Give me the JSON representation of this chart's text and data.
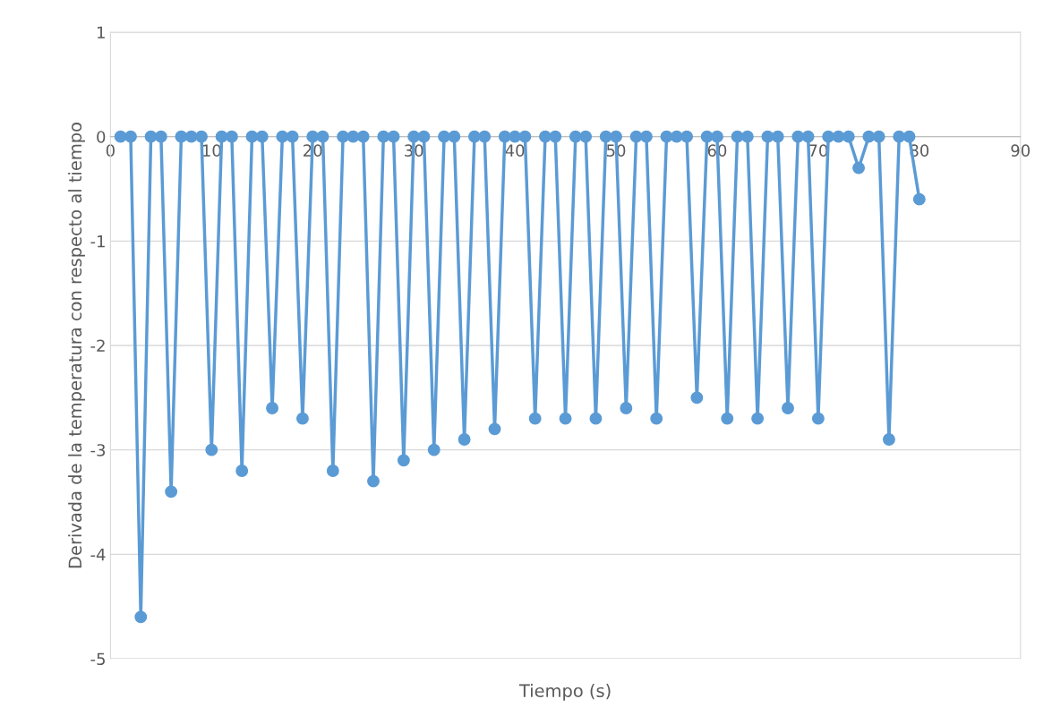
{
  "chart_data": {
    "type": "line",
    "xlabel": "Tiempo (s)",
    "ylabel": "Derivada de la temperatura con respecto al tiempo",
    "x": [
      1,
      2,
      3,
      4,
      5,
      6,
      7,
      8,
      9,
      10,
      11,
      12,
      13,
      14,
      15,
      16,
      17,
      18,
      19,
      20,
      21,
      22,
      23,
      24,
      25,
      26,
      27,
      28,
      29,
      30,
      31,
      32,
      33,
      34,
      35,
      36,
      37,
      38,
      39,
      40,
      41,
      42,
      43,
      44,
      45,
      46,
      47,
      48,
      49,
      50,
      51,
      52,
      53,
      54,
      55,
      56,
      57,
      58,
      59,
      60,
      61,
      62,
      63,
      64,
      65,
      66,
      67,
      68,
      69,
      70,
      71,
      72,
      73,
      74,
      75,
      76,
      77,
      78,
      79,
      80
    ],
    "series": [
      {
        "color": "#5b9bd5",
        "values": [
          0,
          0,
          -4.6,
          0,
          0,
          -3.4,
          0,
          0,
          0,
          -3.0,
          0,
          0,
          -3.2,
          0,
          0,
          -2.6,
          0,
          0,
          -2.7,
          0,
          0,
          -3.2,
          0,
          0,
          0,
          -3.3,
          0,
          0,
          -3.1,
          0,
          0,
          -3.0,
          0,
          0,
          -2.9,
          0,
          0,
          -2.8,
          0,
          0,
          0,
          -2.7,
          0,
          0,
          -2.7,
          0,
          0,
          -2.7,
          0,
          0,
          -2.6,
          0,
          0,
          -2.7,
          0,
          0,
          0,
          -2.5,
          0,
          0,
          -2.7,
          0,
          0,
          -2.7,
          0,
          0,
          -2.6,
          0,
          0,
          -2.7,
          0,
          0,
          0,
          -0.3,
          0,
          0,
          -2.9,
          0,
          0,
          -0.6
        ]
      }
    ],
    "xlim": [
      0,
      90
    ],
    "xticks": [
      0,
      10,
      20,
      30,
      40,
      50,
      60,
      70,
      80,
      90
    ],
    "ylim": [
      -5,
      1
    ],
    "yticks": [
      -5,
      -4,
      -3,
      -2,
      -1,
      0,
      1
    ],
    "grid": "y",
    "marker": "circle",
    "line_style": "solid",
    "legend": false
  }
}
